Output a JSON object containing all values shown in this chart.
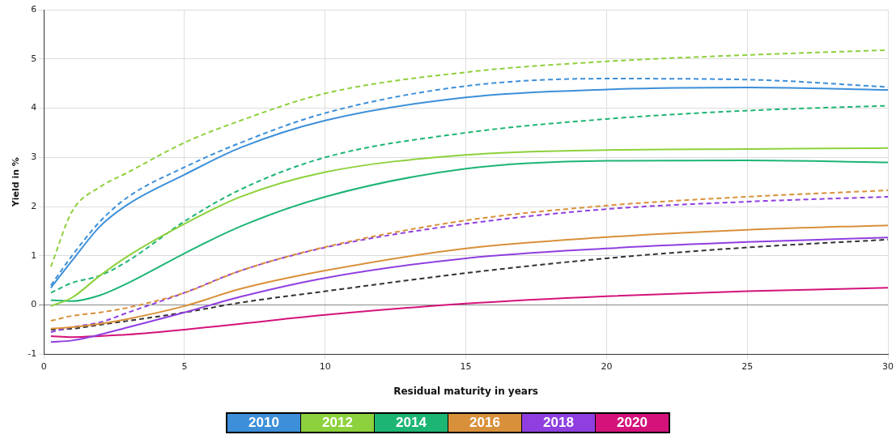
{
  "chart_data": {
    "type": "line",
    "xlabel": "Residual maturity in years",
    "ylabel": "Yield in %",
    "x": [
      0.25,
      1,
      2,
      3,
      5,
      7,
      10,
      15,
      20,
      25,
      30
    ],
    "xlim": [
      0,
      30
    ],
    "xticks": [
      0,
      5,
      10,
      15,
      20,
      25,
      30
    ],
    "ylim": [
      -1,
      6
    ],
    "yticks": [
      -1,
      0,
      1,
      2,
      3,
      4,
      5,
      6
    ],
    "grid": true,
    "legend": "bottom",
    "marker": "none",
    "series": [
      {
        "name": "2010",
        "color": "#3d8fd9",
        "line_style": "solid",
        "values": [
          0.35,
          0.9,
          1.6,
          2.05,
          2.65,
          3.2,
          3.75,
          4.22,
          4.38,
          4.42,
          4.37
        ]
      },
      {
        "color": "#3d8fd9",
        "line_style": "dashed",
        "values": [
          0.4,
          1.0,
          1.7,
          2.2,
          2.8,
          3.3,
          3.9,
          4.45,
          4.6,
          4.58,
          4.43
        ]
      },
      {
        "name": "2012",
        "color": "#8dd13c",
        "line_style": "solid",
        "values": [
          -0.02,
          0.15,
          0.6,
          1.0,
          1.65,
          2.2,
          2.7,
          3.05,
          3.15,
          3.17,
          3.19
        ]
      },
      {
        "color": "#8dd13c",
        "line_style": "dashed",
        "values": [
          0.78,
          1.9,
          2.4,
          2.7,
          3.3,
          3.75,
          4.3,
          4.73,
          4.95,
          5.08,
          5.18
        ]
      },
      {
        "name": "2014",
        "color": "#1db574",
        "line_style": "solid",
        "values": [
          0.1,
          0.08,
          0.2,
          0.45,
          1.05,
          1.6,
          2.2,
          2.77,
          2.93,
          2.94,
          2.9
        ]
      },
      {
        "color": "#1db574",
        "line_style": "dashed",
        "values": [
          0.25,
          0.45,
          0.6,
          0.9,
          1.7,
          2.35,
          3.0,
          3.5,
          3.78,
          3.95,
          4.05
        ]
      },
      {
        "name": "2016",
        "color": "#d9903a",
        "line_style": "solid",
        "values": [
          -0.48,
          -0.45,
          -0.38,
          -0.28,
          -0.02,
          0.33,
          0.7,
          1.15,
          1.38,
          1.53,
          1.62
        ]
      },
      {
        "color": "#d9903a",
        "line_style": "dashed",
        "values": [
          -0.32,
          -0.22,
          -0.15,
          -0.05,
          0.25,
          0.7,
          1.18,
          1.72,
          2.02,
          2.2,
          2.33
        ]
      },
      {
        "name": "2018",
        "color": "#8f3fe0",
        "line_style": "solid",
        "values": [
          -0.75,
          -0.72,
          -0.6,
          -0.45,
          -0.15,
          0.17,
          0.55,
          0.95,
          1.15,
          1.28,
          1.37
        ]
      },
      {
        "color": "#8f3fe0",
        "line_style": "dashed",
        "values": [
          -0.55,
          -0.45,
          -0.35,
          -0.15,
          0.25,
          0.7,
          1.17,
          1.65,
          1.95,
          2.1,
          2.2
        ]
      },
      {
        "name": "2020",
        "color": "#d4127a",
        "line_style": "solid",
        "values": [
          -0.63,
          -0.65,
          -0.63,
          -0.6,
          -0.5,
          -0.38,
          -0.2,
          0.03,
          0.18,
          0.28,
          0.35
        ]
      },
      {
        "color": "#333333",
        "line_style": "dashed",
        "values": [
          -0.5,
          -0.48,
          -0.4,
          -0.32,
          -0.15,
          0.05,
          0.28,
          0.65,
          0.95,
          1.17,
          1.33
        ]
      }
    ]
  }
}
